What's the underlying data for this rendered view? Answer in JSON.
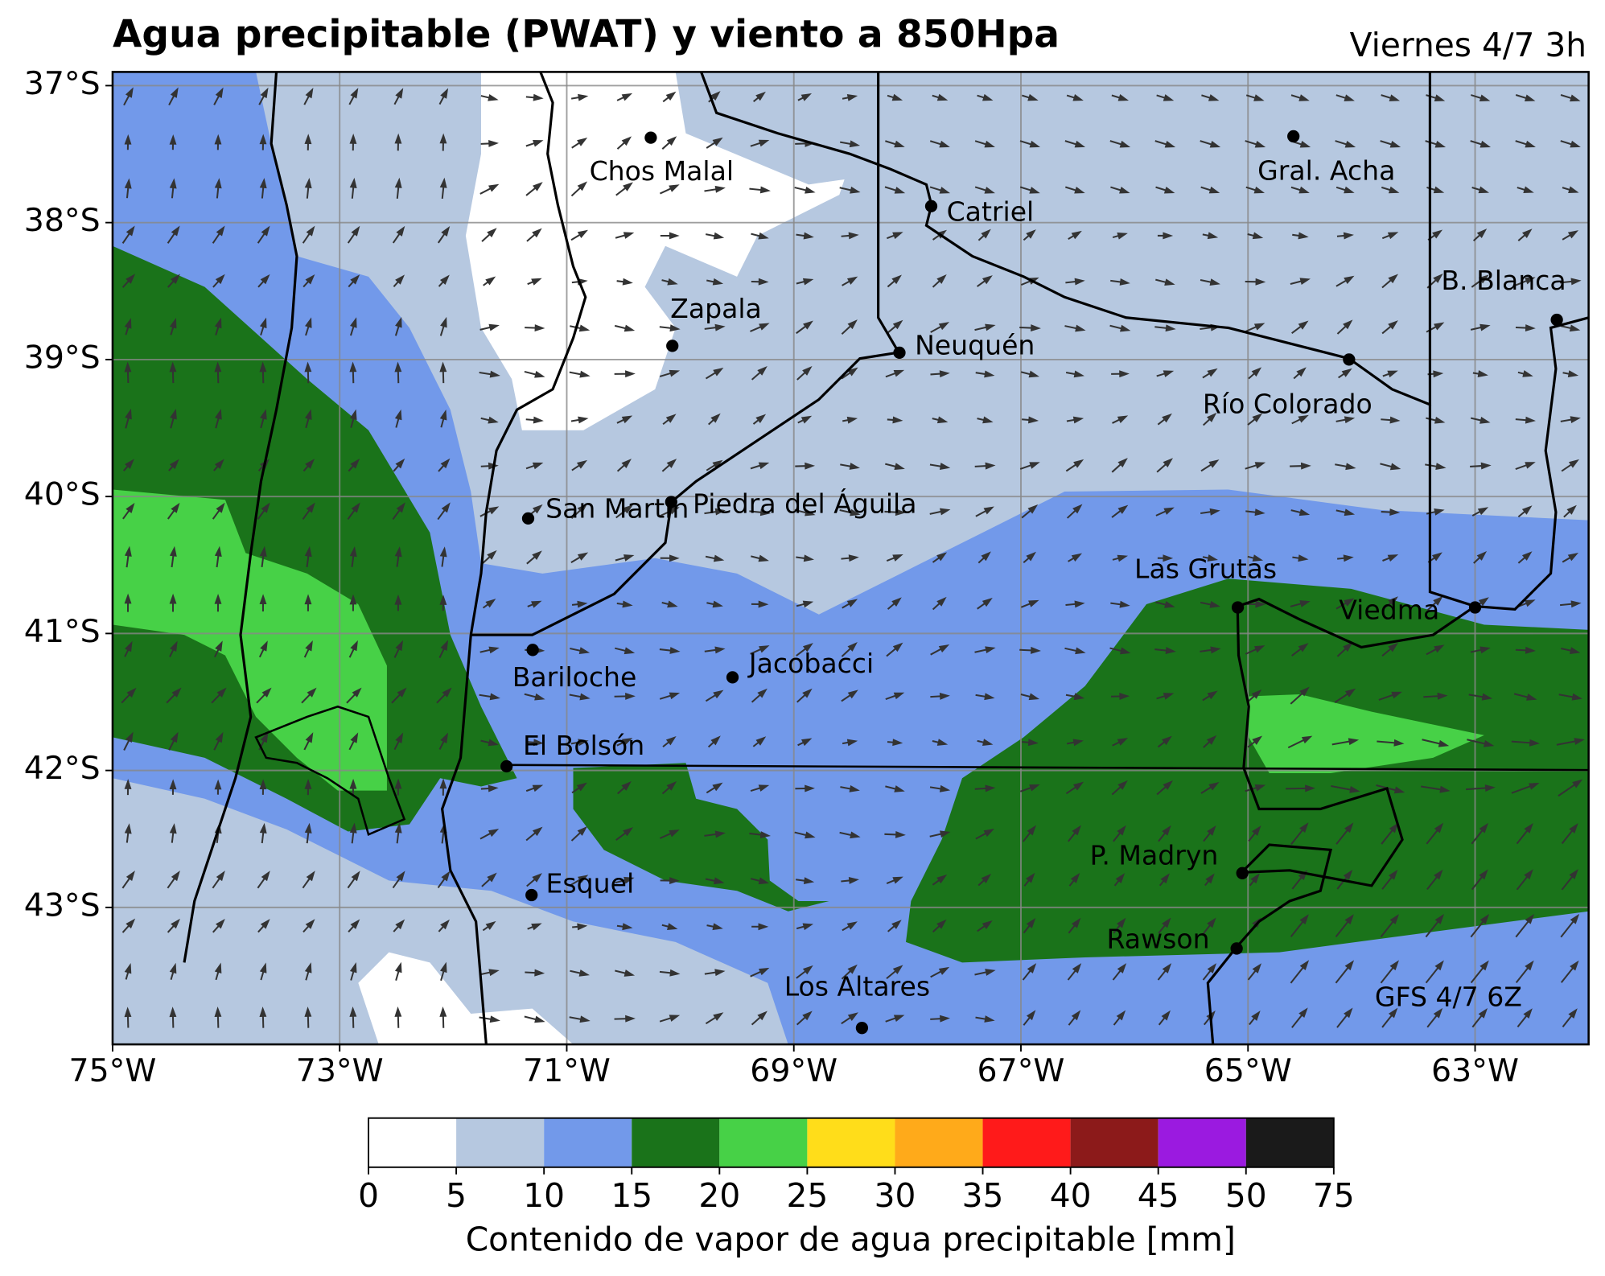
{
  "title": "Agua precipitable (PWAT) y viento a 850Hpa",
  "date": "Viernes 4/7 3h",
  "source": "GFS 4/7 6Z",
  "map": {
    "xlim": [
      -75,
      -62
    ],
    "ylim": [
      -44,
      -36.9
    ],
    "xticks": [
      {
        "value": -75,
        "label": "75°W"
      },
      {
        "value": -73,
        "label": "73°W"
      },
      {
        "value": -71,
        "label": "71°W"
      },
      {
        "value": -69,
        "label": "69°W"
      },
      {
        "value": -67,
        "label": "67°W"
      },
      {
        "value": -65,
        "label": "65°W"
      },
      {
        "value": -63,
        "label": "63°W"
      }
    ],
    "yticks": [
      {
        "value": -37,
        "label": "37°S"
      },
      {
        "value": -38,
        "label": "38°S"
      },
      {
        "value": -39,
        "label": "39°S"
      },
      {
        "value": -40,
        "label": "40°S"
      },
      {
        "value": -41,
        "label": "41°S"
      },
      {
        "value": -42,
        "label": "42°S"
      },
      {
        "value": -43,
        "label": "43°S"
      }
    ],
    "cities": [
      {
        "label": "Chos Malal",
        "lon": -70.26,
        "lat": -37.38
      },
      {
        "label": "Catriel",
        "lon": -67.79,
        "lat": -37.88
      },
      {
        "label": "Gral. Acha",
        "lon": -64.6,
        "lat": -37.37
      },
      {
        "label": "B. Blanca",
        "lon": -62.28,
        "lat": -38.71
      },
      {
        "label": "Zapala",
        "lon": -70.07,
        "lat": -38.9
      },
      {
        "label": "Neuquén",
        "lon": -68.07,
        "lat": -38.95
      },
      {
        "label": "Río Colorado",
        "lon": -64.11,
        "lat": -39.0
      },
      {
        "label": "San Martín",
        "lon": -71.34,
        "lat": -40.16
      },
      {
        "label": "Piedra del Águila",
        "lon": -70.08,
        "lat": -40.04
      },
      {
        "label": "Las Grutas",
        "lon": -65.09,
        "lat": -40.81
      },
      {
        "label": "Viedma",
        "lon": -63.0,
        "lat": -40.81
      },
      {
        "label": "Bariloche",
        "lon": -71.3,
        "lat": -41.12
      },
      {
        "label": "Jacobacci",
        "lon": -69.54,
        "lat": -41.32
      },
      {
        "label": "El Bolsón",
        "lon": -71.53,
        "lat": -41.97
      },
      {
        "label": "P. Madryn",
        "lon": -65.05,
        "lat": -42.75
      },
      {
        "label": "Esquel",
        "lon": -71.31,
        "lat": -42.91
      },
      {
        "label": "Rawson",
        "lon": -65.1,
        "lat": -43.3
      },
      {
        "label": "Los Altares",
        "lon": -68.4,
        "lat": -43.88
      }
    ]
  },
  "colorbar": {
    "levels": [
      0,
      5,
      10,
      15,
      20,
      25,
      30,
      35,
      40,
      45,
      50,
      75
    ],
    "colors": [
      "#ffffff",
      "#b6c8e0",
      "#7299ea",
      "#1a731a",
      "#47d147",
      "#ffdd1a",
      "#ffaa1a",
      "#ff1a1a",
      "#8c1a1a",
      "#9b1ae0",
      "#1a1a1a"
    ],
    "label": "Contenido de vapor de agua precipitable [mm]"
  }
}
